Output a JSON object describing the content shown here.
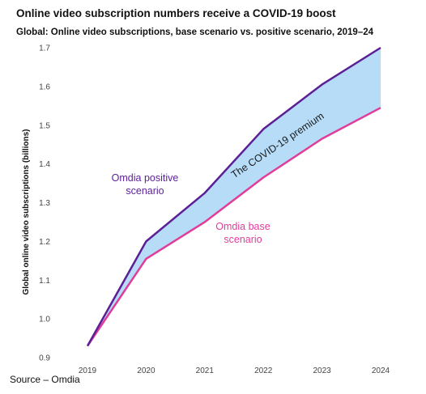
{
  "title": "Online video subscription numbers receive a COVID-19 boost",
  "subtitle": "Global: Online video subscriptions, base scenario vs. positive scenario, 2019–24",
  "source": "Source – Omdia",
  "colors": {
    "positive": "#5b1f96",
    "base": "#e23c9b",
    "fill": "#b6dcf7"
  },
  "chart_data": {
    "type": "line",
    "title": "Global: Online video subscriptions, base scenario vs. positive scenario, 2019–24",
    "xlabel": "",
    "ylabel": "Global online video subscriptions (billions)",
    "categories": [
      "2019",
      "2020",
      "2021",
      "2022",
      "2023",
      "2024"
    ],
    "ylim": [
      0.9,
      1.7
    ],
    "yticks": [
      "0.9",
      "1.0",
      "1.1",
      "1.2",
      "1.3",
      "1.4",
      "1.5",
      "1.6",
      "1.7"
    ],
    "grid": false,
    "series": [
      {
        "name": "Omdia positive scenario",
        "values": [
          0.93,
          1.2,
          1.325,
          1.49,
          1.605,
          1.7
        ]
      },
      {
        "name": "Omdia base scenario",
        "values": [
          0.93,
          1.155,
          1.25,
          1.365,
          1.465,
          1.545
        ]
      }
    ],
    "annotations": {
      "positive_label": [
        "Omdia positive",
        "scenario"
      ],
      "base_label": [
        "Omdia base",
        "scenario"
      ],
      "premium_label": "The COVID-19 premium"
    }
  }
}
